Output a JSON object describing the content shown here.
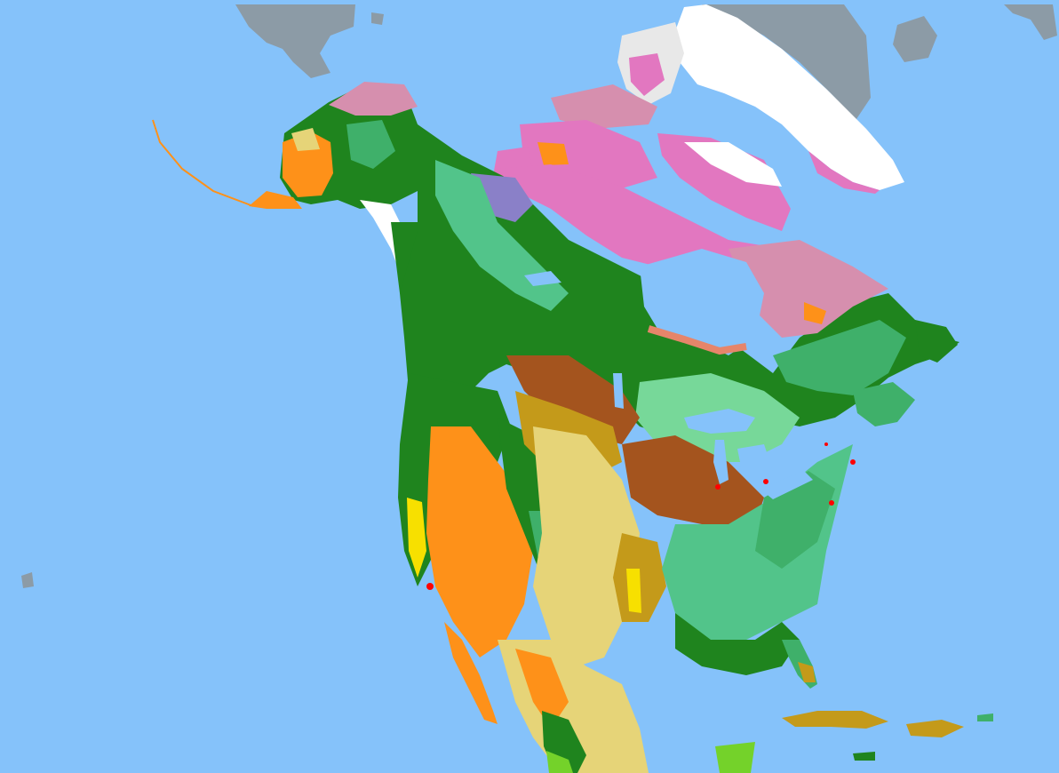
{
  "map": {
    "kind": "land-cover raster",
    "colors": {
      "water": "#85c2fa",
      "no_data": "#8c9ba6",
      "snow_ice": "#ffffff",
      "evergreen_needleleaf_forest": "#1f841e",
      "mixed_forest": "#3fb06a",
      "deciduous_broadleaf_forest": "#77d899",
      "boreal_needleleaf": "#52c48a",
      "arctic_barrens": "#e277c0",
      "tundra_shrub": "#d68fae",
      "lichen_moss": "#8a80c8",
      "shrubland": "#fe9119",
      "grassland": "#e6d478",
      "cropland": "#a4541e",
      "cropland_natural_mosaic": "#c49a1a",
      "wetland": "#d8b83a",
      "urban": "#ff0000",
      "tropical_forest": "#74d22a",
      "barren_yellow": "#f7e000"
    }
  }
}
